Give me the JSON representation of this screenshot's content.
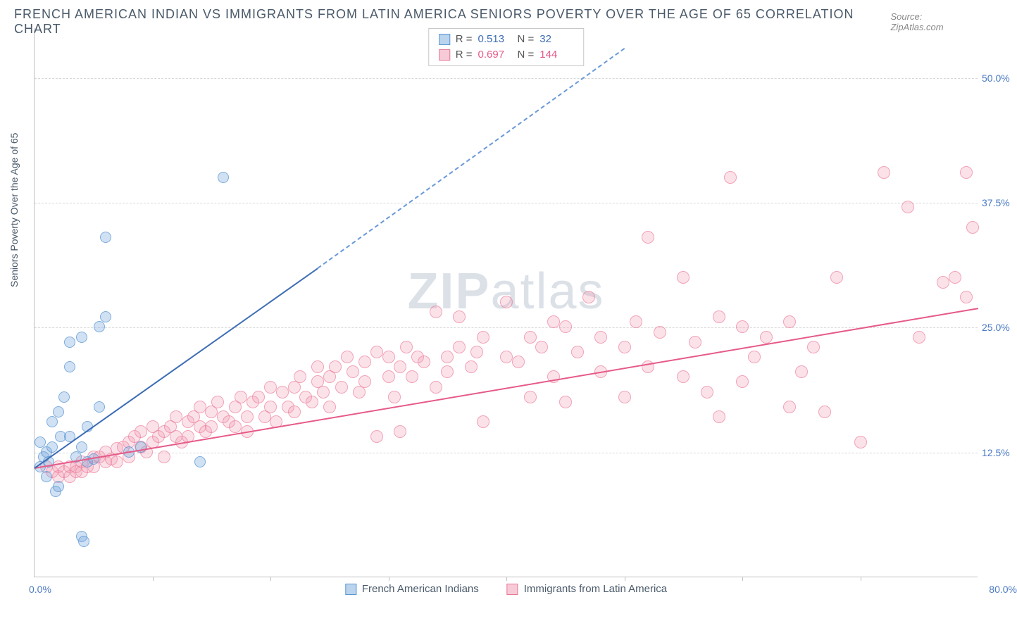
{
  "title": "FRENCH AMERICAN INDIAN VS IMMIGRANTS FROM LATIN AMERICA SENIORS POVERTY OVER THE AGE OF 65 CORRELATION CHART",
  "source": "Source: ZipAtlas.com",
  "watermark_zip": "ZIP",
  "watermark_atlas": "atlas",
  "y_axis_label": "Seniors Poverty Over the Age of 65",
  "chart": {
    "type": "scatter",
    "xlim": [
      0,
      80
    ],
    "ylim": [
      0,
      55
    ],
    "x_tick_labels": {
      "0": "0.0%",
      "80": "80.0%"
    },
    "y_tick_labels": {
      "12.5": "12.5%",
      "25": "25.0%",
      "37.5": "37.5%",
      "50": "50.0%"
    },
    "y_gridlines": [
      12.5,
      25,
      37.5,
      50
    ],
    "x_ticks": [
      10,
      20,
      30,
      40,
      50,
      60,
      70
    ],
    "grid_color": "#d8d8d8",
    "background_color": "#ffffff",
    "series_blue": {
      "label": "French American Indians",
      "R": "0.513",
      "N": "32",
      "marker_color": "#78aadc",
      "marker_border": "#5a96d2",
      "trend_color": "#3d6db5",
      "trend_solid": {
        "x1": 0,
        "y1": 11,
        "x2": 24,
        "y2": 31
      },
      "trend_dashed": {
        "x1": 24,
        "y1": 31,
        "x2": 50,
        "y2": 53
      },
      "points": [
        [
          0.5,
          11
        ],
        [
          0.8,
          12
        ],
        [
          1,
          12.5
        ],
        [
          1.2,
          11.5
        ],
        [
          1.5,
          13
        ],
        [
          1,
          10
        ],
        [
          0.5,
          13.5
        ],
        [
          1.8,
          8.5
        ],
        [
          2,
          9
        ],
        [
          4,
          4
        ],
        [
          4.2,
          3.5
        ],
        [
          1.5,
          15.5
        ],
        [
          2,
          16.5
        ],
        [
          2.2,
          14
        ],
        [
          2.5,
          18
        ],
        [
          3,
          21
        ],
        [
          3,
          14
        ],
        [
          3.5,
          12
        ],
        [
          4,
          13
        ],
        [
          4.5,
          11.5
        ],
        [
          5,
          11.8
        ],
        [
          5.5,
          25
        ],
        [
          6,
          26
        ],
        [
          6,
          34
        ],
        [
          3,
          23.5
        ],
        [
          4,
          24
        ],
        [
          4.5,
          15
        ],
        [
          5.5,
          17
        ],
        [
          16,
          40
        ],
        [
          14,
          11.5
        ],
        [
          8,
          12.5
        ],
        [
          9,
          13
        ]
      ]
    },
    "series_pink": {
      "label": "Immigrants from Latin America",
      "R": "0.697",
      "N": "144",
      "marker_color": "#f096af",
      "marker_border": "#eb7896",
      "trend_color": "#e65a88",
      "trend_solid": {
        "x1": 0,
        "y1": 11,
        "x2": 80,
        "y2": 27
      },
      "points": [
        [
          1,
          11
        ],
        [
          1.5,
          10.5
        ],
        [
          2,
          11
        ],
        [
          2,
          10
        ],
        [
          2.5,
          10.5
        ],
        [
          3,
          11
        ],
        [
          3,
          10
        ],
        [
          3.5,
          11
        ],
        [
          3.5,
          10.5
        ],
        [
          4,
          11.5
        ],
        [
          4,
          10.5
        ],
        [
          4.5,
          11
        ],
        [
          5,
          12
        ],
        [
          5,
          11
        ],
        [
          5.5,
          12
        ],
        [
          6,
          11.5
        ],
        [
          6,
          12.5
        ],
        [
          6.5,
          11.8
        ],
        [
          7,
          12.8
        ],
        [
          7,
          11.5
        ],
        [
          7.5,
          13
        ],
        [
          8,
          12
        ],
        [
          8,
          13.5
        ],
        [
          8.5,
          14
        ],
        [
          9,
          13
        ],
        [
          9,
          14.5
        ],
        [
          9.5,
          12.5
        ],
        [
          10,
          15
        ],
        [
          10,
          13.5
        ],
        [
          10.5,
          14
        ],
        [
          11,
          12
        ],
        [
          11,
          14.5
        ],
        [
          11.5,
          15
        ],
        [
          12,
          14
        ],
        [
          12,
          16
        ],
        [
          12.5,
          13.5
        ],
        [
          13,
          15.5
        ],
        [
          13,
          14
        ],
        [
          13.5,
          16
        ],
        [
          14,
          15
        ],
        [
          14,
          17
        ],
        [
          14.5,
          14.5
        ],
        [
          15,
          16.5
        ],
        [
          15,
          15
        ],
        [
          15.5,
          17.5
        ],
        [
          16,
          16
        ],
        [
          16.5,
          15.5
        ],
        [
          17,
          17
        ],
        [
          17,
          15
        ],
        [
          17.5,
          18
        ],
        [
          18,
          16
        ],
        [
          18,
          14.5
        ],
        [
          18.5,
          17.5
        ],
        [
          19,
          18
        ],
        [
          19.5,
          16
        ],
        [
          20,
          17
        ],
        [
          20,
          19
        ],
        [
          20.5,
          15.5
        ],
        [
          21,
          18.5
        ],
        [
          21.5,
          17
        ],
        [
          22,
          19
        ],
        [
          22,
          16.5
        ],
        [
          22.5,
          20
        ],
        [
          23,
          18
        ],
        [
          23.5,
          17.5
        ],
        [
          24,
          19.5
        ],
        [
          24,
          21
        ],
        [
          24.5,
          18.5
        ],
        [
          25,
          20
        ],
        [
          25,
          17
        ],
        [
          25.5,
          21
        ],
        [
          26,
          19
        ],
        [
          26.5,
          22
        ],
        [
          27,
          20.5
        ],
        [
          27.5,
          18.5
        ],
        [
          28,
          21.5
        ],
        [
          28,
          19.5
        ],
        [
          29,
          14
        ],
        [
          29,
          22.5
        ],
        [
          30,
          20
        ],
        [
          30,
          22
        ],
        [
          30.5,
          18
        ],
        [
          31,
          21
        ],
        [
          31,
          14.5
        ],
        [
          31.5,
          23
        ],
        [
          32,
          20
        ],
        [
          32.5,
          22
        ],
        [
          33,
          21.5
        ],
        [
          34,
          19
        ],
        [
          34,
          26.5
        ],
        [
          35,
          22
        ],
        [
          35,
          20.5
        ],
        [
          36,
          23
        ],
        [
          36,
          26
        ],
        [
          37,
          21
        ],
        [
          37.5,
          22.5
        ],
        [
          38,
          24
        ],
        [
          38,
          15.5
        ],
        [
          40,
          27.5
        ],
        [
          40,
          22
        ],
        [
          41,
          21.5
        ],
        [
          42,
          24
        ],
        [
          42,
          18
        ],
        [
          43,
          23
        ],
        [
          44,
          25.5
        ],
        [
          44,
          20
        ],
        [
          45,
          25
        ],
        [
          45,
          17.5
        ],
        [
          46,
          22.5
        ],
        [
          47,
          28
        ],
        [
          48,
          24
        ],
        [
          48,
          20.5
        ],
        [
          50,
          23
        ],
        [
          50,
          18
        ],
        [
          51,
          25.5
        ],
        [
          52,
          21
        ],
        [
          52,
          34
        ],
        [
          53,
          24.5
        ],
        [
          55,
          30
        ],
        [
          55,
          20
        ],
        [
          56,
          23.5
        ],
        [
          57,
          18.5
        ],
        [
          58,
          26
        ],
        [
          58,
          16
        ],
        [
          59,
          40
        ],
        [
          60,
          25
        ],
        [
          60,
          19.5
        ],
        [
          61,
          22
        ],
        [
          62,
          24
        ],
        [
          64,
          25.5
        ],
        [
          64,
          17
        ],
        [
          65,
          20.5
        ],
        [
          66,
          23
        ],
        [
          67,
          16.5
        ],
        [
          68,
          30
        ],
        [
          70,
          13.5
        ],
        [
          72,
          40.5
        ],
        [
          74,
          37
        ],
        [
          75,
          24
        ],
        [
          77,
          29.5
        ],
        [
          78,
          30
        ],
        [
          79,
          40.5
        ],
        [
          79,
          28
        ],
        [
          79.5,
          35
        ]
      ]
    }
  },
  "legend": {
    "r_label": "R =",
    "n_label": "N ="
  }
}
